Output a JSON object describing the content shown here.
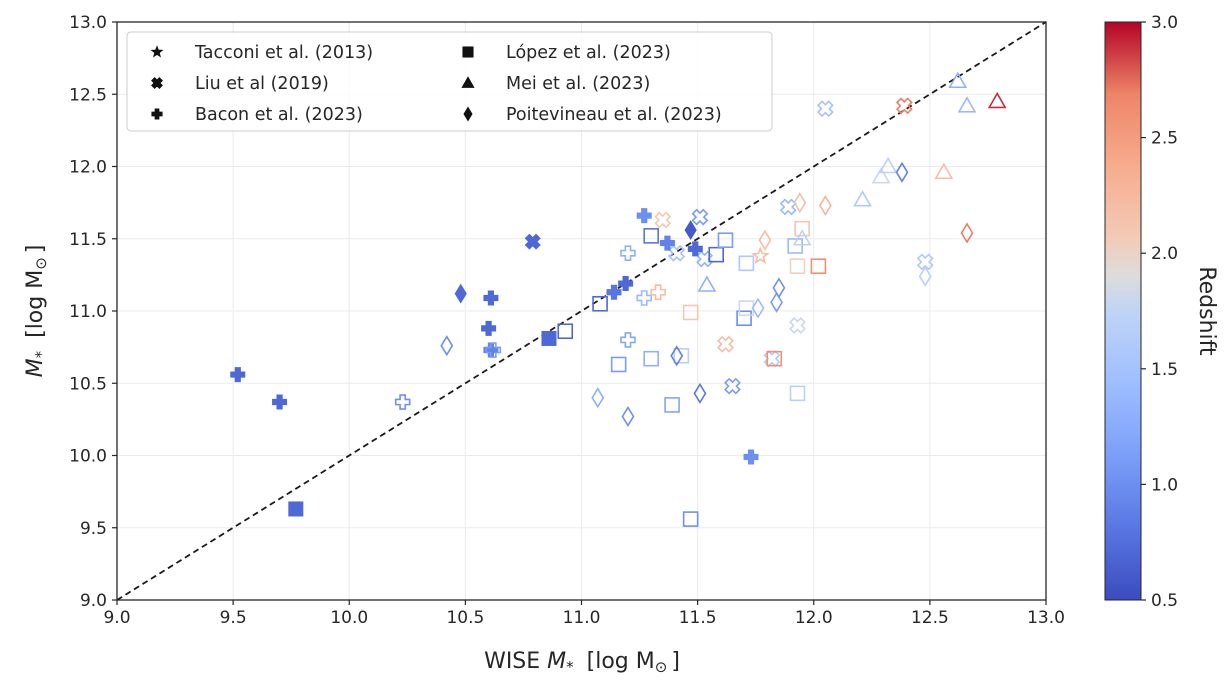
{
  "chart_data": {
    "type": "scatter",
    "xlabel_text": "WISE",
    "xlabel_math": "M",
    "xlabel_sub": "*",
    "xlabel_unit": "[log M",
    "xlabel_close": "]",
    "ylabel_math": "M",
    "ylabel_sub": "*",
    "ylabel_unit": "[log M",
    "ylabel_close": "]",
    "sun_symbol": "⊙",
    "xlim": [
      9.0,
      13.0
    ],
    "ylim": [
      9.0,
      13.0
    ],
    "xticks": [
      "9.0",
      "9.5",
      "10.0",
      "10.5",
      "11.0",
      "11.5",
      "12.0",
      "12.5",
      "13.0"
    ],
    "yticks": [
      "9.0",
      "9.5",
      "10.0",
      "10.5",
      "11.0",
      "11.5",
      "12.0",
      "12.5",
      "13.0"
    ],
    "grid": true,
    "one_to_one_line": true,
    "legend_position": "top-left",
    "colorbar": {
      "label": "Redshift",
      "colormap": "coolwarm",
      "range": [
        0.5,
        3.0
      ],
      "ticks": [
        "0.5",
        "1.0",
        "1.5",
        "2.0",
        "2.5",
        "3.0"
      ]
    },
    "series": [
      {
        "name": "Tacconi et al. (2013)",
        "marker": "star",
        "points": [
          {
            "x": 11.77,
            "y": 11.38,
            "z": 2.2,
            "filled": false
          }
        ]
      },
      {
        "name": "Liu et al (2019)",
        "marker": "cross",
        "points": [
          {
            "x": 10.79,
            "y": 11.48,
            "z": 0.7,
            "filled": true
          },
          {
            "x": 11.35,
            "y": 11.63,
            "z": 2.1,
            "filled": false
          },
          {
            "x": 11.51,
            "y": 11.65,
            "z": 1.1,
            "filled": false
          },
          {
            "x": 11.41,
            "y": 11.4,
            "z": 1.5,
            "filled": false
          },
          {
            "x": 11.53,
            "y": 11.36,
            "z": 1.3,
            "filled": false
          },
          {
            "x": 11.62,
            "y": 10.77,
            "z": 2.2,
            "filled": false
          },
          {
            "x": 11.65,
            "y": 10.48,
            "z": 1.1,
            "filled": false
          },
          {
            "x": 11.82,
            "y": 10.67,
            "z": 1.6,
            "filled": false
          },
          {
            "x": 11.89,
            "y": 11.72,
            "z": 1.4,
            "filled": false
          },
          {
            "x": 11.93,
            "y": 10.9,
            "z": 1.8,
            "filled": false
          },
          {
            "x": 12.05,
            "y": 12.4,
            "z": 1.5,
            "filled": false
          },
          {
            "x": 12.39,
            "y": 12.42,
            "z": 2.7,
            "filled": false
          },
          {
            "x": 12.48,
            "y": 11.34,
            "z": 1.6,
            "filled": false
          }
        ]
      },
      {
        "name": "Bacon et al. (2023)",
        "marker": "plus",
        "points": [
          {
            "x": 9.52,
            "y": 10.56,
            "z": 0.7,
            "filled": true
          },
          {
            "x": 9.7,
            "y": 10.37,
            "z": 0.7,
            "filled": true
          },
          {
            "x": 10.23,
            "y": 10.37,
            "z": 1.0,
            "filled": false
          },
          {
            "x": 10.6,
            "y": 10.88,
            "z": 0.7,
            "filled": true
          },
          {
            "x": 10.61,
            "y": 11.09,
            "z": 0.7,
            "filled": true
          },
          {
            "x": 10.61,
            "y": 10.73,
            "z": 0.9,
            "filled": true
          },
          {
            "x": 10.62,
            "y": 10.73,
            "z": 1.1,
            "filled": false
          },
          {
            "x": 11.14,
            "y": 11.13,
            "z": 0.8,
            "filled": true
          },
          {
            "x": 11.19,
            "y": 11.19,
            "z": 0.7,
            "filled": true
          },
          {
            "x": 11.2,
            "y": 11.4,
            "z": 1.3,
            "filled": false
          },
          {
            "x": 11.2,
            "y": 10.8,
            "z": 1.2,
            "filled": false
          },
          {
            "x": 11.27,
            "y": 11.66,
            "z": 1.0,
            "filled": true
          },
          {
            "x": 11.27,
            "y": 11.09,
            "z": 1.4,
            "filled": false
          },
          {
            "x": 11.33,
            "y": 11.13,
            "z": 2.2,
            "filled": false
          },
          {
            "x": 11.37,
            "y": 11.47,
            "z": 0.9,
            "filled": true
          },
          {
            "x": 11.49,
            "y": 11.43,
            "z": 0.7,
            "filled": true
          },
          {
            "x": 11.73,
            "y": 9.99,
            "z": 1.0,
            "filled": true
          }
        ]
      },
      {
        "name": "López et al. (2023)",
        "marker": "square",
        "points": [
          {
            "x": 9.77,
            "y": 9.63,
            "z": 0.7,
            "filled": true
          },
          {
            "x": 10.86,
            "y": 10.81,
            "z": 0.7,
            "filled": true
          },
          {
            "x": 10.93,
            "y": 10.86,
            "z": 0.7,
            "filled": false
          },
          {
            "x": 11.08,
            "y": 11.05,
            "z": 0.7,
            "filled": false
          },
          {
            "x": 11.16,
            "y": 10.63,
            "z": 1.1,
            "filled": false
          },
          {
            "x": 11.3,
            "y": 11.52,
            "z": 0.8,
            "filled": false
          },
          {
            "x": 11.3,
            "y": 10.67,
            "z": 1.3,
            "filled": false
          },
          {
            "x": 11.39,
            "y": 10.35,
            "z": 1.2,
            "filled": false
          },
          {
            "x": 11.43,
            "y": 10.69,
            "z": 1.7,
            "filled": false
          },
          {
            "x": 11.47,
            "y": 9.56,
            "z": 1.0,
            "filled": false
          },
          {
            "x": 11.47,
            "y": 10.99,
            "z": 2.1,
            "filled": false
          },
          {
            "x": 11.58,
            "y": 11.39,
            "z": 0.7,
            "filled": false
          },
          {
            "x": 11.62,
            "y": 11.49,
            "z": 1.1,
            "filled": false
          },
          {
            "x": 11.7,
            "y": 10.95,
            "z": 1.0,
            "filled": false
          },
          {
            "x": 11.71,
            "y": 11.33,
            "z": 1.6,
            "filled": false
          },
          {
            "x": 11.71,
            "y": 11.02,
            "z": 1.8,
            "filled": false
          },
          {
            "x": 11.83,
            "y": 10.67,
            "z": 2.6,
            "filled": false
          },
          {
            "x": 11.92,
            "y": 11.45,
            "z": 1.4,
            "filled": false
          },
          {
            "x": 11.93,
            "y": 11.31,
            "z": 2.0,
            "filled": false
          },
          {
            "x": 11.93,
            "y": 10.43,
            "z": 1.7,
            "filled": false
          },
          {
            "x": 11.95,
            "y": 11.57,
            "z": 2.1,
            "filled": false
          },
          {
            "x": 12.02,
            "y": 11.31,
            "z": 2.6,
            "filled": false
          }
        ]
      },
      {
        "name": "Mei et al. (2023)",
        "marker": "triangle",
        "points": [
          {
            "x": 11.54,
            "y": 11.18,
            "z": 1.3,
            "filled": false
          },
          {
            "x": 11.95,
            "y": 11.5,
            "z": 1.7,
            "filled": false
          },
          {
            "x": 12.21,
            "y": 11.77,
            "z": 1.6,
            "filled": false
          },
          {
            "x": 12.29,
            "y": 11.93,
            "z": 1.8,
            "filled": false
          },
          {
            "x": 12.32,
            "y": 12.0,
            "z": 1.7,
            "filled": false
          },
          {
            "x": 12.56,
            "y": 11.96,
            "z": 2.2,
            "filled": false
          },
          {
            "x": 12.62,
            "y": 12.59,
            "z": 1.3,
            "filled": false
          },
          {
            "x": 12.66,
            "y": 12.42,
            "z": 1.4,
            "filled": false
          },
          {
            "x": 12.79,
            "y": 12.45,
            "z": 2.9,
            "filled": false
          }
        ]
      },
      {
        "name": "Poitevineau et al. (2023)",
        "marker": "diamond",
        "points": [
          {
            "x": 10.42,
            "y": 10.76,
            "z": 1.0,
            "filled": false
          },
          {
            "x": 10.48,
            "y": 11.12,
            "z": 0.7,
            "filled": true
          },
          {
            "x": 11.07,
            "y": 10.4,
            "z": 1.3,
            "filled": false
          },
          {
            "x": 11.2,
            "y": 10.27,
            "z": 1.0,
            "filled": false
          },
          {
            "x": 11.41,
            "y": 10.69,
            "z": 0.9,
            "filled": false
          },
          {
            "x": 11.47,
            "y": 11.56,
            "z": 0.6,
            "filled": true
          },
          {
            "x": 11.51,
            "y": 10.43,
            "z": 0.8,
            "filled": false
          },
          {
            "x": 11.76,
            "y": 11.02,
            "z": 1.4,
            "filled": false
          },
          {
            "x": 11.79,
            "y": 11.49,
            "z": 2.2,
            "filled": false
          },
          {
            "x": 11.84,
            "y": 11.06,
            "z": 1.1,
            "filled": false
          },
          {
            "x": 11.85,
            "y": 11.16,
            "z": 1.0,
            "filled": false
          },
          {
            "x": 11.94,
            "y": 11.75,
            "z": 2.2,
            "filled": false
          },
          {
            "x": 12.05,
            "y": 11.73,
            "z": 2.3,
            "filled": false
          },
          {
            "x": 12.38,
            "y": 11.96,
            "z": 0.9,
            "filled": false
          },
          {
            "x": 12.48,
            "y": 11.24,
            "z": 1.7,
            "filled": false
          },
          {
            "x": 12.66,
            "y": 11.54,
            "z": 2.7,
            "filled": false
          }
        ]
      }
    ]
  }
}
